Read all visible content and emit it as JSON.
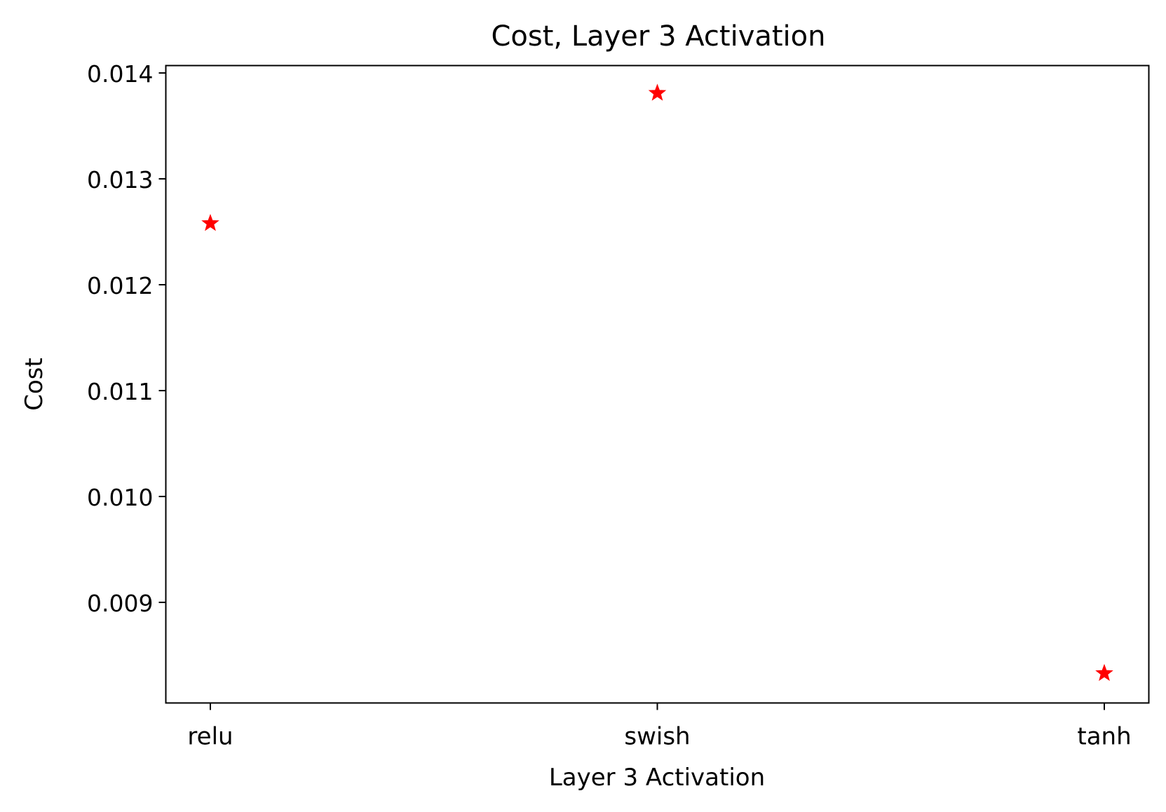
{
  "chart_data": {
    "type": "scatter",
    "title": "Cost, Layer 3 Activation",
    "xlabel": "Layer 3 Activation",
    "ylabel": "Cost",
    "categories": [
      "relu",
      "swish",
      "tanh"
    ],
    "series": [
      {
        "values": [
          0.01258,
          0.01381,
          0.00833
        ],
        "marker": "star",
        "color": "#ff0000"
      }
    ],
    "ylim": [
      0.00805,
      0.01407
    ],
    "yticks": [
      0.009,
      0.01,
      0.011,
      0.012,
      0.013,
      0.014
    ],
    "ytick_labels": [
      "0.009",
      "0.010",
      "0.011",
      "0.012",
      "0.013",
      "0.014"
    ],
    "grid": false,
    "legend": "none"
  }
}
